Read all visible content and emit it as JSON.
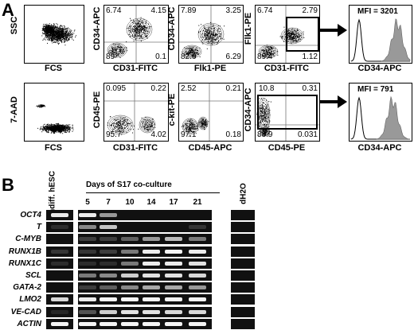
{
  "panel_a": {
    "letter": "A",
    "row1": {
      "dot_plot": {
        "xlabel": "FCS",
        "ylabel": "SSC"
      },
      "quads": [
        {
          "xlabel": "CD31-FITC",
          "ylabel": "CD34-APC",
          "ul": "6.74",
          "ur": "4.15",
          "ll": "89",
          "lr": "0.1"
        },
        {
          "xlabel": "Flk1-PE",
          "ylabel": "CD34-APC",
          "ul": "7.89",
          "ur": "3.25",
          "ll": "82.6",
          "lr": "6.29"
        },
        {
          "xlabel": "CD31-FITC",
          "ylabel": "Flk1-PE",
          "ul": "6.74",
          "ur": "2.79",
          "ll": "89.4",
          "lr": "1.12"
        }
      ],
      "histogram": {
        "mfi": "MFI = 3201",
        "xlabel": "CD34-APC"
      }
    },
    "row2": {
      "dot_plot": {
        "xlabel": "FCS",
        "ylabel": "7-AAD"
      },
      "quads": [
        {
          "xlabel": "CD31-FITC",
          "ylabel": "CD45-PE",
          "ul": "0.095",
          "ur": "0.22",
          "ll": "95.7",
          "lr": "4.02"
        },
        {
          "xlabel": "CD45-APC",
          "ylabel": "c-kit-PE",
          "ul": "2.52",
          "ur": "0.21",
          "ll": "97.1",
          "lr": "0.18"
        },
        {
          "xlabel": "CD45-PE",
          "ylabel": "CD34-APC",
          "ul": "10.8",
          "ur": "0.31",
          "ll": "88.9",
          "lr": "0.031"
        }
      ],
      "histogram": {
        "mfi": "MFI = 791",
        "xlabel": "CD34-APC"
      }
    }
  },
  "panel_b": {
    "letter": "B",
    "undiff_label": "Undiff. hESC",
    "days_header": "Days of S17 co-culture",
    "water_label": "dH2O",
    "days": [
      "5",
      "7",
      "10",
      "14",
      "17",
      "21"
    ],
    "genes": [
      "OCT4",
      "T",
      "C-MYB",
      "RUNX1B",
      "RUNX1C",
      "SCL",
      "GATA-2",
      "LMO2",
      "VE-CAD",
      "ACTIN"
    ],
    "band_intensity": [
      {
        "undiff": 0.9,
        "days": [
          0.9,
          0.55,
          0.0,
          0.0,
          0.0,
          0.0
        ],
        "water": 0
      },
      {
        "undiff": 0.1,
        "days": [
          0.5,
          0.7,
          0.0,
          0.0,
          0.0,
          0.15
        ],
        "water": 0
      },
      {
        "undiff": 0.0,
        "days": [
          0.2,
          0.2,
          0.35,
          0.55,
          0.65,
          0.45
        ],
        "water": 0
      },
      {
        "undiff": 0.15,
        "days": [
          0.15,
          0.2,
          0.45,
          0.9,
          0.95,
          0.9
        ],
        "water": 0
      },
      {
        "undiff": 0.1,
        "days": [
          0.1,
          0.1,
          0.45,
          0.9,
          0.9,
          0.85
        ],
        "water": 0
      },
      {
        "undiff": 0.0,
        "days": [
          0.45,
          0.5,
          0.75,
          0.85,
          0.85,
          0.8
        ],
        "water": 0
      },
      {
        "undiff": 0.0,
        "days": [
          0.2,
          0.35,
          0.5,
          0.6,
          0.6,
          0.55
        ],
        "water": 0
      },
      {
        "undiff": 0.8,
        "days": [
          0.9,
          0.95,
          0.95,
          0.95,
          0.95,
          0.95
        ],
        "water": 0
      },
      {
        "undiff": 0.05,
        "days": [
          0.3,
          0.75,
          0.85,
          0.85,
          0.8,
          0.8
        ],
        "water": 0
      },
      {
        "undiff": 0.95,
        "days": [
          0.95,
          0.95,
          0.95,
          0.95,
          0.95,
          0.95
        ],
        "water": 0
      }
    ]
  }
}
